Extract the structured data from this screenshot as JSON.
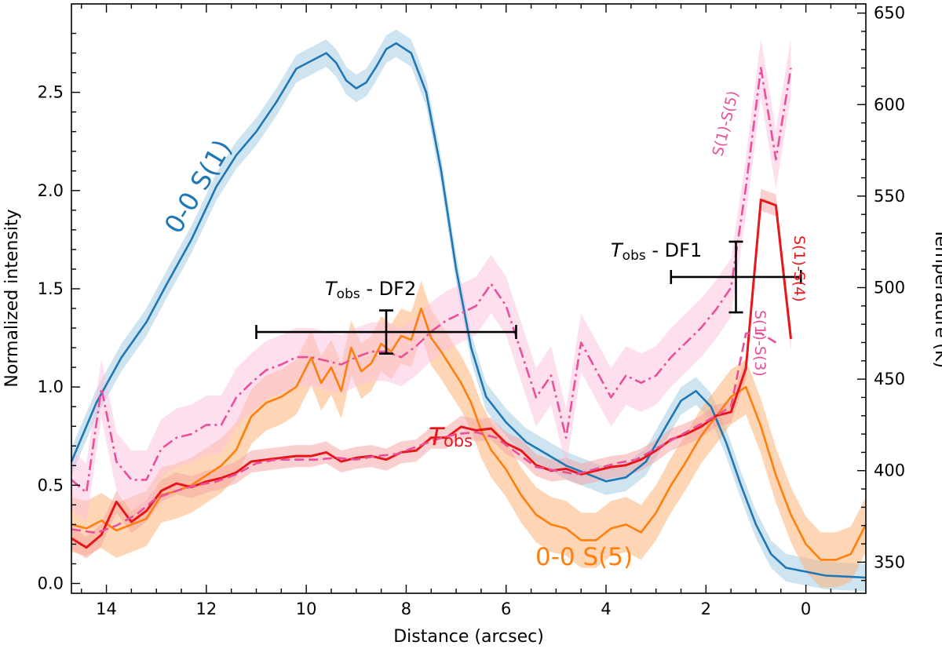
{
  "chart_data": {
    "type": "line",
    "xlabel": "Distance (arcsec)",
    "ylabel_left": "Normalized intensity",
    "ylabel_right": "Temperature (K)",
    "xlim": [
      14.7,
      -1.2
    ],
    "ylim_left": [
      -0.05,
      2.95
    ],
    "ylim_right": [
      333,
      655
    ],
    "x_ticks": [
      14,
      12,
      10,
      8,
      6,
      4,
      2,
      0
    ],
    "y_ticks_left": [
      0.0,
      0.5,
      1.0,
      1.5,
      2.0,
      2.5
    ],
    "y_ticks_right": [
      350,
      400,
      450,
      500,
      550,
      600,
      650
    ],
    "series": [
      {
        "name": "0-0 S(1)",
        "axis": "left",
        "color": "#1f77b4",
        "band_color": "#9ecae1",
        "x": [
          14.7,
          14.2,
          13.7,
          13.2,
          12.8,
          12.3,
          11.8,
          11.4,
          11.0,
          10.6,
          10.2,
          9.9,
          9.6,
          9.4,
          9.2,
          9.0,
          8.8,
          8.6,
          8.4,
          8.2,
          7.9,
          7.6,
          7.3,
          7.0,
          6.7,
          6.4,
          6.0,
          5.6,
          5.2,
          4.8,
          4.4,
          4.0,
          3.6,
          3.2,
          2.8,
          2.5,
          2.2,
          1.9,
          1.6,
          1.3,
          1.0,
          0.7,
          0.4,
          0.0,
          -0.4,
          -0.8,
          -1.2
        ],
        "y": [
          0.62,
          0.92,
          1.15,
          1.33,
          1.52,
          1.75,
          2.02,
          2.18,
          2.3,
          2.45,
          2.62,
          2.66,
          2.7,
          2.65,
          2.56,
          2.52,
          2.55,
          2.63,
          2.72,
          2.75,
          2.7,
          2.5,
          2.1,
          1.6,
          1.2,
          0.95,
          0.82,
          0.72,
          0.66,
          0.6,
          0.56,
          0.52,
          0.54,
          0.62,
          0.8,
          0.93,
          0.98,
          0.9,
          0.72,
          0.5,
          0.3,
          0.15,
          0.08,
          0.06,
          0.04,
          0.035,
          0.03
        ],
        "band": 0.07
      },
      {
        "name": "0-0 S(5)",
        "axis": "left",
        "color": "#ff7f0e",
        "band_color": "#fdae6b",
        "x": [
          14.7,
          14.4,
          14.1,
          13.8,
          13.5,
          13.2,
          12.9,
          12.6,
          12.3,
          12.0,
          11.7,
          11.4,
          11.1,
          10.8,
          10.5,
          10.2,
          9.9,
          9.7,
          9.5,
          9.3,
          9.1,
          8.9,
          8.7,
          8.5,
          8.3,
          8.1,
          7.9,
          7.7,
          7.5,
          7.3,
          7.1,
          6.9,
          6.7,
          6.5,
          6.3,
          6.0,
          5.7,
          5.4,
          5.1,
          4.8,
          4.5,
          4.2,
          3.9,
          3.6,
          3.3,
          3.0,
          2.7,
          2.4,
          2.1,
          1.8,
          1.5,
          1.2,
          0.9,
          0.6,
          0.3,
          0.0,
          -0.3,
          -0.6,
          -0.9,
          -1.2
        ],
        "y": [
          0.3,
          0.28,
          0.32,
          0.27,
          0.3,
          0.33,
          0.45,
          0.47,
          0.5,
          0.55,
          0.6,
          0.68,
          0.85,
          0.92,
          0.95,
          1.0,
          1.15,
          1.02,
          1.1,
          0.98,
          1.2,
          1.08,
          1.12,
          1.22,
          1.18,
          1.26,
          1.24,
          1.4,
          1.25,
          1.18,
          1.1,
          1.02,
          0.92,
          0.78,
          0.68,
          0.58,
          0.45,
          0.35,
          0.3,
          0.28,
          0.22,
          0.22,
          0.28,
          0.3,
          0.26,
          0.36,
          0.5,
          0.62,
          0.75,
          0.85,
          0.95,
          1.0,
          0.8,
          0.55,
          0.35,
          0.2,
          0.12,
          0.12,
          0.15,
          0.3
        ],
        "band": 0.14
      },
      {
        "name": "Tobs",
        "axis": "right",
        "color": "#e8161a",
        "band_color": "#f4a0a0",
        "x": [
          14.7,
          14.4,
          14.1,
          13.8,
          13.5,
          13.2,
          12.9,
          12.6,
          12.3,
          12.0,
          11.7,
          11.4,
          11.1,
          10.8,
          10.5,
          10.2,
          9.9,
          9.6,
          9.3,
          9.0,
          8.7,
          8.4,
          8.1,
          7.8,
          7.5,
          7.2,
          6.9,
          6.6,
          6.3,
          6.0,
          5.7,
          5.4,
          5.1,
          4.8,
          4.5,
          4.2,
          3.9,
          3.6,
          3.3,
          3.0,
          2.7,
          2.4,
          2.1,
          1.8,
          1.5,
          1.2,
          0.9,
          0.6,
          0.3
        ],
        "y": [
          363,
          358,
          365,
          383,
          372,
          378,
          389,
          393,
          391,
          394,
          396,
          399,
          405,
          406,
          407,
          408,
          408,
          410,
          405,
          407,
          408,
          406,
          410,
          411,
          418,
          418,
          424,
          422,
          423,
          415,
          411,
          403,
          400,
          401,
          398,
          400,
          402,
          403,
          406,
          411,
          417,
          420,
          424,
          430,
          432,
          456,
          548,
          545,
          472
        ],
        "band": 6
      },
      {
        "name": "S(1)-S(5)",
        "axis": "right",
        "color": "#e8509b",
        "band_color": "#fbc0dd",
        "dash": "14 5 3 5",
        "x": [
          14.7,
          14.4,
          14.1,
          13.8,
          13.5,
          13.2,
          12.9,
          12.6,
          12.3,
          12.0,
          11.7,
          11.4,
          11.1,
          10.8,
          10.5,
          10.2,
          9.9,
          9.6,
          9.3,
          9.0,
          8.7,
          8.4,
          8.1,
          7.8,
          7.5,
          7.2,
          6.9,
          6.6,
          6.3,
          6.0,
          5.7,
          5.4,
          5.1,
          4.8,
          4.5,
          4.2,
          3.9,
          3.6,
          3.3,
          3.0,
          2.7,
          2.4,
          2.1,
          1.8,
          1.5,
          1.2,
          0.9,
          0.6,
          0.3
        ],
        "y": [
          395,
          388,
          445,
          405,
          395,
          395,
          412,
          418,
          420,
          425,
          425,
          440,
          448,
          455,
          458,
          462,
          462,
          460,
          458,
          462,
          465,
          465,
          462,
          468,
          476,
          482,
          486,
          490,
          502,
          490,
          465,
          440,
          452,
          418,
          470,
          455,
          440,
          452,
          448,
          452,
          462,
          470,
          478,
          488,
          500,
          555,
          620,
          570,
          620
        ],
        "band": 16
      },
      {
        "name": "S(1)-S(3)",
        "axis": "right",
        "color": "#e8509b",
        "dash": "12 6",
        "x": [
          14.7,
          14.2,
          13.8,
          13.4,
          13.0,
          12.6,
          12.2,
          11.8,
          11.4,
          11.0,
          10.6,
          10.2,
          9.8,
          9.4,
          9.0,
          8.6,
          8.2,
          7.8,
          7.4,
          7.0,
          6.6,
          6.2,
          5.8,
          5.4,
          5.0,
          4.6,
          4.2,
          3.8,
          3.4,
          3.0,
          2.6,
          2.2,
          1.8,
          1.5,
          1.2,
          0.9,
          0.6
        ],
        "y": [
          368,
          366,
          370,
          376,
          385,
          389,
          392,
          394,
          398,
          404,
          406,
          406,
          406,
          407,
          406,
          408,
          409,
          413,
          417,
          420,
          421,
          418,
          410,
          402,
          400,
          398,
          401,
          404,
          406,
          412,
          418,
          424,
          430,
          435,
          475,
          475,
          470
        ],
        "band": 0
      }
    ],
    "error_bars": [
      {
        "label_main": "T",
        "label_sub": "obs",
        "label_suffix": " - DF2",
        "x": 8.4,
        "xerr_low": 11.0,
        "xerr_high": 5.8,
        "y": 1.28,
        "yerr": 0.11
      },
      {
        "label_main": "T",
        "label_sub": "obs",
        "label_suffix": " - DF1",
        "x": 1.4,
        "xerr_low": 2.7,
        "xerr_high": 0.1,
        "y": 1.56,
        "yerr": 0.18
      }
    ],
    "annotations": {
      "s1": "0-0 S(1)",
      "s5": "0-0 S(5)",
      "tobs_main": "T",
      "tobs_sub": "obs",
      "r15": "S(1)-S(5)",
      "r14": "S(1)-S(4)",
      "r13": "S(1)-S(3)"
    }
  }
}
